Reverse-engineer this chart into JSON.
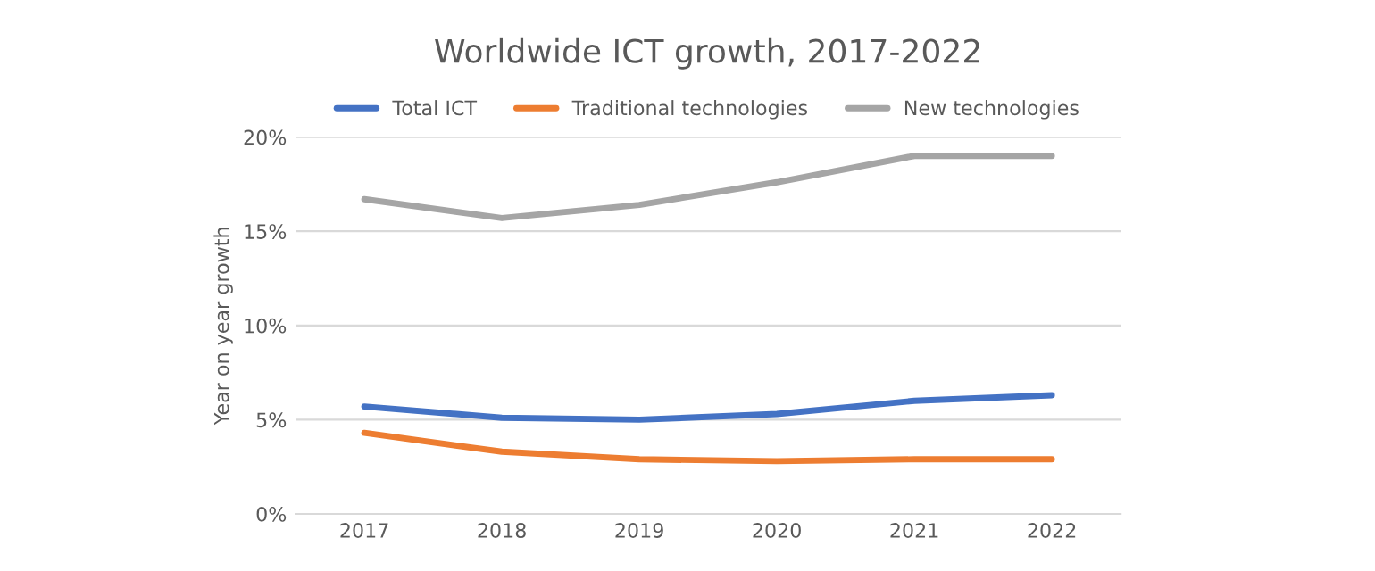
{
  "chart_data": {
    "type": "line",
    "title": "Worldwide ICT growth, 2017-2022",
    "ylabel": "Year on year growth",
    "categories": [
      "2017",
      "2018",
      "2019",
      "2020",
      "2021",
      "2022"
    ],
    "series": [
      {
        "name": "Total ICT",
        "color": "#4472c4",
        "values": [
          5.7,
          5.1,
          5.0,
          5.3,
          6.0,
          6.3
        ]
      },
      {
        "name": "Traditional technologies",
        "color": "#ed7d31",
        "values": [
          4.3,
          3.3,
          2.9,
          2.8,
          2.9,
          2.9
        ]
      },
      {
        "name": "New technologies",
        "color": "#a5a5a5",
        "values": [
          16.7,
          15.7,
          16.4,
          17.6,
          19.0,
          19.0
        ]
      }
    ],
    "ylim": [
      0,
      20
    ],
    "yticks": [
      {
        "value": 0,
        "label": "0%"
      },
      {
        "value": 5,
        "label": "5%"
      },
      {
        "value": 10,
        "label": "10%"
      },
      {
        "value": 15,
        "label": "15%"
      },
      {
        "value": 20,
        "label": "20%"
      }
    ],
    "grid": "y",
    "legend": "top",
    "marker": "none",
    "line_style": "solid"
  }
}
